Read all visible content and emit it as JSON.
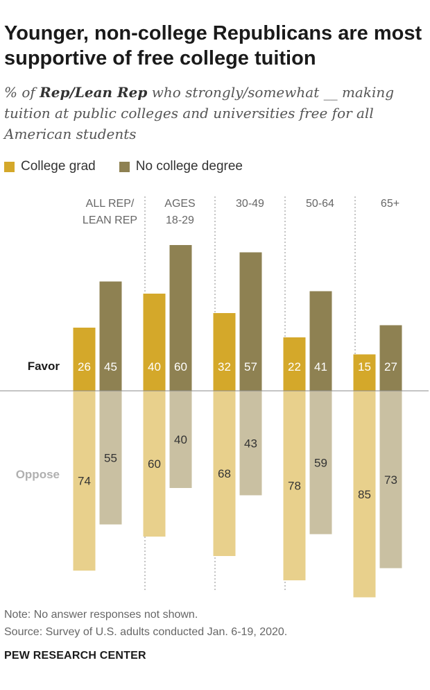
{
  "title": "Younger, non-college Republicans are most supportive of free college tuition",
  "subtitle": {
    "prefix": "% of ",
    "bold": "Rep/Lean Rep",
    "suffix": " who strongly/somewhat __ making tuition at public colleges and universities free for all American students"
  },
  "legend": [
    {
      "label": "College grad",
      "color": "#D4A82A"
    },
    {
      "label": "No college degree",
      "color": "#8E8152"
    }
  ],
  "chart_data": {
    "type": "bar",
    "title": "Younger, non-college Republicans are most supportive of free college tuition",
    "groups": [
      {
        "label_lines": [
          "ALL REP/",
          "LEAN REP"
        ],
        "favor": [
          26,
          45
        ],
        "oppose": [
          74,
          55
        ]
      },
      {
        "label_lines": [
          "AGES",
          "18-29"
        ],
        "favor": [
          40,
          60
        ],
        "oppose": [
          60,
          40
        ]
      },
      {
        "label_lines": [
          "30-49"
        ],
        "favor": [
          32,
          57
        ],
        "oppose": [
          68,
          43
        ]
      },
      {
        "label_lines": [
          "50-64"
        ],
        "favor": [
          22,
          41
        ],
        "oppose": [
          78,
          59
        ]
      },
      {
        "label_lines": [
          "65+"
        ],
        "favor": [
          15,
          27
        ],
        "oppose": [
          85,
          73
        ]
      }
    ],
    "series": [
      {
        "name": "College grad",
        "favor_color": "#D4A82A",
        "oppose_color": "#E8D08C"
      },
      {
        "name": "No college degree",
        "favor_color": "#8E8152",
        "oppose_color": "#C9C0A2"
      }
    ],
    "row_labels": {
      "favor": "Favor",
      "oppose": "Oppose"
    },
    "row_label_colors": {
      "favor": "#1a1a1a",
      "oppose": "#B0B0B0"
    }
  },
  "notes": [
    "Note: No answer responses not shown.",
    "Source: Survey of U.S. adults conducted Jan. 6-19, 2020."
  ],
  "brand": "PEW RESEARCH CENTER"
}
